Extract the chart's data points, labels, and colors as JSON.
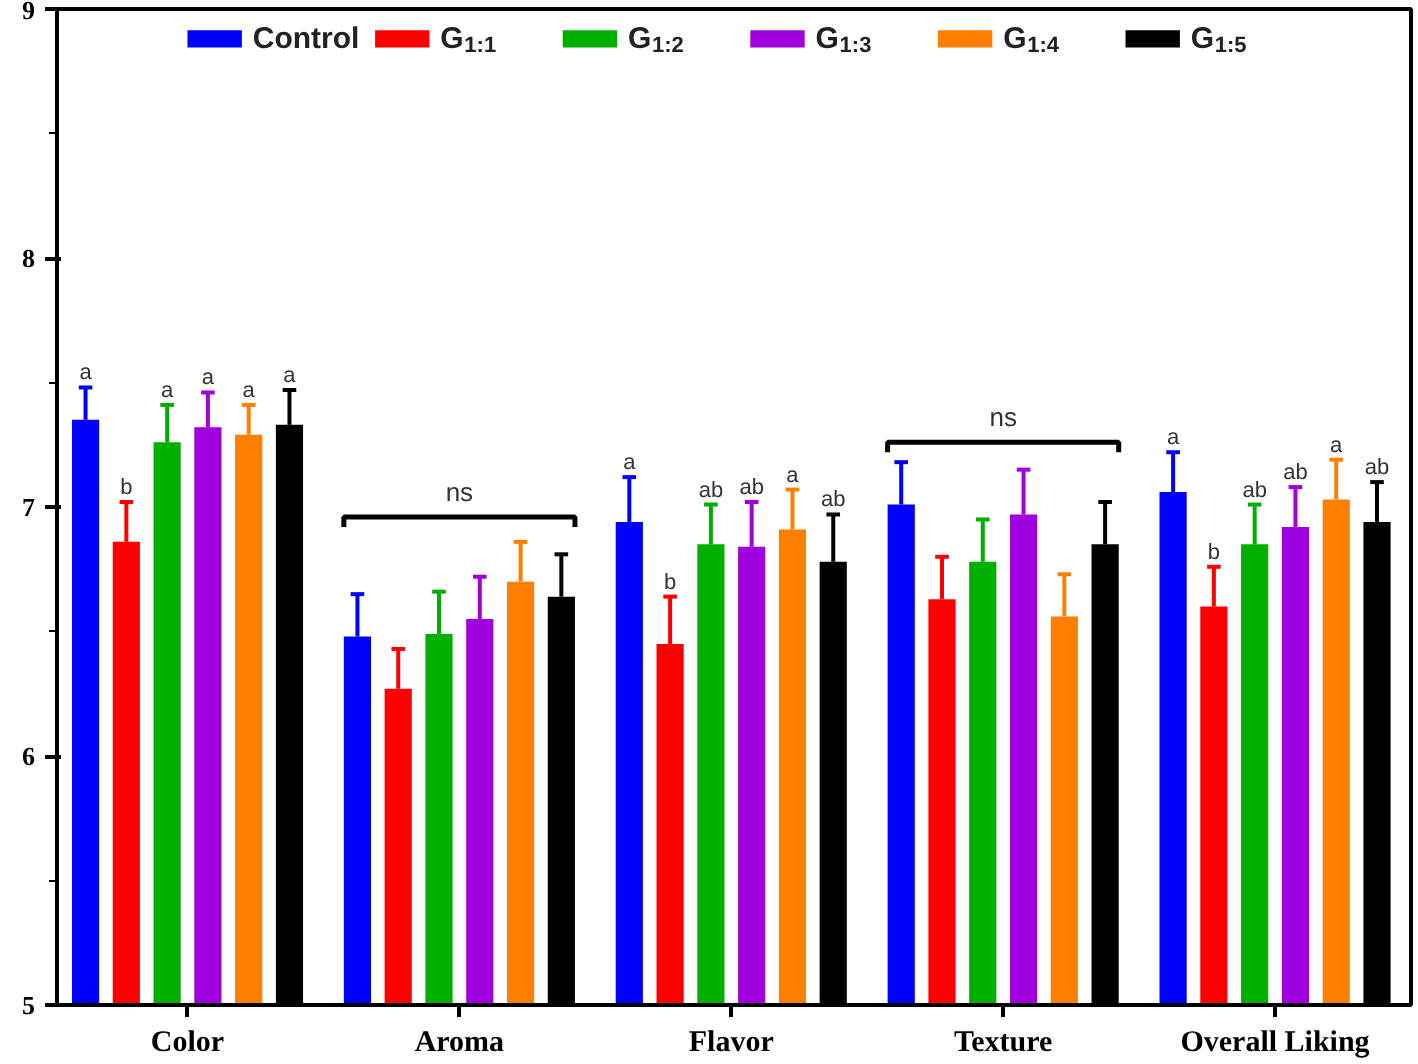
{
  "chart_data": {
    "type": "bar",
    "categories": [
      "Color",
      "Aroma",
      "Flavor",
      "Texture",
      "Overall Liking"
    ],
    "ylim": [
      5,
      9
    ],
    "yticks": [
      5,
      6,
      7,
      8,
      9
    ],
    "grid": false,
    "legend": "top",
    "series": [
      {
        "name": "Control",
        "color": "#0000ff",
        "values": [
          7.35,
          6.48,
          6.94,
          7.01,
          7.06
        ],
        "errors": [
          0.13,
          0.17,
          0.18,
          0.17,
          0.16
        ],
        "value_labels": [
          "a",
          null,
          "a",
          null,
          "a"
        ]
      },
      {
        "name": "G$_{1:1}$",
        "color": "#ff0000",
        "values": [
          6.86,
          6.27,
          6.45,
          6.63,
          6.6
        ],
        "errors": [
          0.16,
          0.16,
          0.19,
          0.17,
          0.16
        ],
        "value_labels": [
          "b",
          null,
          "b",
          null,
          "b"
        ]
      },
      {
        "name": "G$_{1:2}$",
        "color": "#00b000",
        "values": [
          7.26,
          6.49,
          6.85,
          6.78,
          6.85
        ],
        "errors": [
          0.15,
          0.17,
          0.16,
          0.17,
          0.16
        ],
        "value_labels": [
          "a",
          null,
          "ab",
          null,
          "ab"
        ]
      },
      {
        "name": "G$_{1:3}$",
        "color": "#a000e0",
        "values": [
          7.32,
          6.55,
          6.84,
          6.97,
          6.92
        ],
        "errors": [
          0.14,
          0.17,
          0.18,
          0.18,
          0.16
        ],
        "value_labels": [
          "a",
          null,
          "ab",
          null,
          "ab"
        ]
      },
      {
        "name": "G$_{1:4}$",
        "color": "#ff8000",
        "values": [
          7.29,
          6.7,
          6.91,
          6.56,
          7.03
        ],
        "errors": [
          0.12,
          0.16,
          0.16,
          0.17,
          0.16
        ],
        "value_labels": [
          "a",
          null,
          "a",
          null,
          "a"
        ]
      },
      {
        "name": "G$_{1:5}$",
        "color": "#000000",
        "values": [
          7.33,
          6.64,
          6.78,
          6.85,
          6.94
        ],
        "errors": [
          0.14,
          0.17,
          0.19,
          0.17,
          0.16
        ],
        "value_labels": [
          "a",
          null,
          "ab",
          null,
          "ab"
        ]
      }
    ],
    "annotations": [
      "ns",
      "ns"
    ]
  }
}
